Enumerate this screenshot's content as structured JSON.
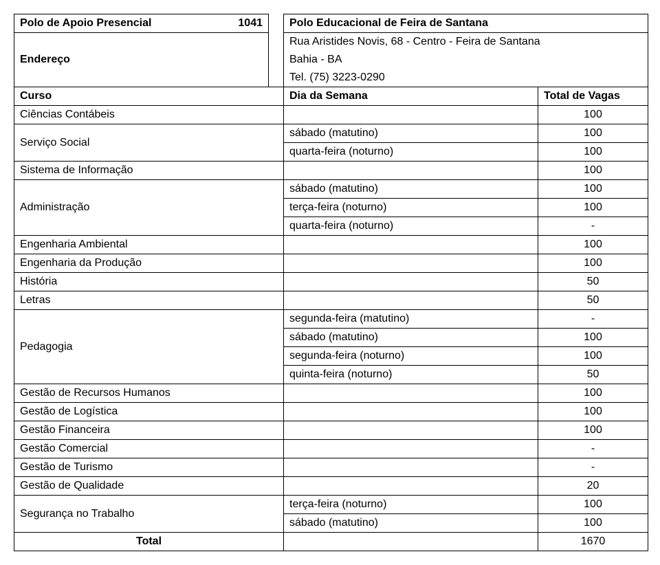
{
  "header": {
    "label": "Polo de Apoio Presencial",
    "code": "1041",
    "name": "Polo Educacional de Feira de Santana"
  },
  "address": {
    "label": "Endereço",
    "line1": "Rua Aristides Novis, 68 - Centro - Feira de Santana",
    "line2": "Bahia - BA",
    "line3": "Tel. (75) 3223-0290"
  },
  "columns": {
    "curso": "Curso",
    "dia": "Dia da Semana",
    "vagas": "Total de Vagas"
  },
  "rows": {
    "cienciasContabeis": {
      "label": "Ciências Contábeis",
      "value": "100"
    },
    "servicoSocial": {
      "label": "Serviço Social",
      "r1": {
        "dia": "sábado (matutino)",
        "val": "100"
      },
      "r2": {
        "dia": "quarta-feira (noturno)",
        "val": "100"
      }
    },
    "sistemaInfo": {
      "label": "Sistema de Informação",
      "value": "100"
    },
    "administracao": {
      "label": "Administração",
      "r1": {
        "dia": "sábado (matutino)",
        "val": "100"
      },
      "r2": {
        "dia": "terça-feira (noturno)",
        "val": "100"
      },
      "r3": {
        "dia": "quarta-feira (noturno)",
        "val": "-"
      }
    },
    "engAmbiental": {
      "label": "Engenharia Ambiental",
      "value": "100"
    },
    "engProducao": {
      "label": "Engenharia da Produção",
      "value": "100"
    },
    "historia": {
      "label": "História",
      "value": "50"
    },
    "letras": {
      "label": "Letras",
      "value": "50"
    },
    "pedagogia": {
      "label": "Pedagogia",
      "r1": {
        "dia": "segunda-feira (matutino)",
        "val": "-"
      },
      "r2": {
        "dia": "sábado (matutino)",
        "val": "100"
      },
      "r3": {
        "dia": "segunda-feira (noturno)",
        "val": "100"
      },
      "r4": {
        "dia": "quinta-feira (noturno)",
        "val": "50"
      }
    },
    "gestaoRH": {
      "label": "Gestão de Recursos Humanos",
      "value": "100"
    },
    "gestaoLog": {
      "label": "Gestão de Logística",
      "value": "100"
    },
    "gestaoFin": {
      "label": "Gestão Financeira",
      "value": "100"
    },
    "gestaoCom": {
      "label": "Gestão Comercial",
      "value": "-"
    },
    "gestaoTur": {
      "label": "Gestão de Turismo",
      "value": "-"
    },
    "gestaoQual": {
      "label": "Gestão de Qualidade",
      "value": "20"
    },
    "segTrabalho": {
      "label": "Segurança no Trabalho",
      "r1": {
        "dia": "terça-feira (noturno)",
        "val": "100"
      },
      "r2": {
        "dia": "sábado (matutino)",
        "val": "100"
      }
    },
    "total": {
      "label": "Total",
      "value": "1670"
    }
  }
}
